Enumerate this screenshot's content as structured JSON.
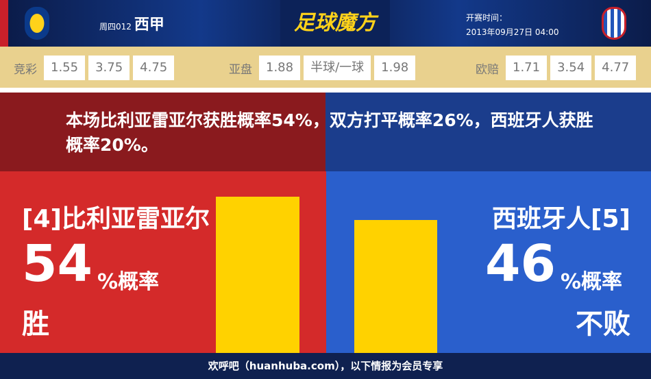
{
  "header": {
    "match_no": "周四012",
    "league": "西甲",
    "logo_text": "足球魔方",
    "time_label": "开赛时间：",
    "kickoff": "2013年09月27日 04:00"
  },
  "odds": {
    "jingcai": {
      "label": "竞彩",
      "values": [
        "1.55",
        "3.75",
        "4.75"
      ]
    },
    "yapan": {
      "label": "亚盘",
      "values": [
        "1.88",
        "半球/一球",
        "1.98"
      ]
    },
    "oupei": {
      "label": "欧赔",
      "values": [
        "1.71",
        "3.54",
        "4.77"
      ]
    }
  },
  "summary": "本场比利亚雷亚尔获胜概率54%，双方打平概率26%，西班牙人获胜概率20%。",
  "home": {
    "name": "[4]比利亚雷亚尔",
    "pct": "54",
    "unit": "%概率",
    "outcome": "胜",
    "bar_value": 54
  },
  "away": {
    "name": "西班牙人[5]",
    "pct": "46",
    "unit": "%概率",
    "outcome": "不败",
    "bar_value": 46
  },
  "colors": {
    "home": "#d42a2a",
    "away": "#2a5fcc",
    "bar": "#ffd200"
  },
  "footer": "欢呼吧（huanhuba.com），以下情报为会员专享"
}
